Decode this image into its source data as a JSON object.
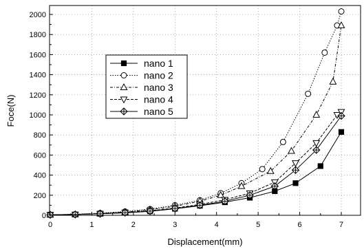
{
  "chart_data": {
    "type": "line",
    "xlabel": "Displacement(mm)",
    "ylabel": "Foce(N)",
    "xlim": [
      0,
      7.5
    ],
    "ylim": [
      0,
      2100
    ],
    "x_ticks": [
      0,
      1,
      2,
      3,
      4,
      5,
      6,
      7
    ],
    "y_ticks": [
      0,
      200,
      400,
      600,
      800,
      1000,
      1200,
      1400,
      1600,
      1800,
      2000
    ],
    "x_tick_labels": [
      "0",
      "1",
      "2",
      "3",
      "4",
      "5",
      "6",
      "7"
    ],
    "y_tick_labels": [
      "0",
      "200",
      "400",
      "600",
      "800",
      "1000",
      "1200",
      "1400",
      "1600",
      "1800",
      "2000"
    ],
    "grid": "dotted",
    "legend_position": "upper-left-center",
    "series": [
      {
        "name": "nano 1",
        "marker": "filled-square",
        "dash": "solid",
        "x": [
          0,
          0.6,
          1.2,
          1.8,
          2.4,
          3.0,
          3.6,
          4.2,
          4.8,
          5.4,
          5.9,
          6.5,
          7.0
        ],
        "y": [
          5,
          8,
          15,
          25,
          40,
          65,
          95,
          130,
          175,
          240,
          320,
          490,
          830
        ]
      },
      {
        "name": "nano 2",
        "marker": "open-circle",
        "dash": "dotted",
        "x": [
          0,
          0.6,
          1.2,
          1.8,
          2.4,
          3.0,
          3.6,
          4.1,
          4.6,
          5.1,
          5.6,
          6.2,
          6.6,
          6.9,
          7.0
        ],
        "y": [
          5,
          10,
          22,
          38,
          62,
          100,
          150,
          220,
          320,
          460,
          730,
          1210,
          1620,
          1890,
          2030
        ]
      },
      {
        "name": "nano 3",
        "marker": "open-triangle-up",
        "dash": "dash-dot",
        "x": [
          0,
          0.6,
          1.2,
          1.8,
          2.4,
          3.0,
          3.6,
          4.1,
          4.6,
          5.3,
          5.8,
          6.4,
          6.8,
          7.0
        ],
        "y": [
          5,
          9,
          18,
          32,
          55,
          90,
          140,
          200,
          290,
          440,
          640,
          1000,
          1330,
          1890
        ]
      },
      {
        "name": "nano 4",
        "marker": "open-triangle-down",
        "dash": "dashed",
        "x": [
          0,
          0.6,
          1.2,
          1.8,
          2.4,
          3.0,
          3.6,
          4.2,
          4.8,
          5.4,
          5.9,
          6.4,
          6.9,
          7.0
        ],
        "y": [
          5,
          8,
          16,
          28,
          45,
          72,
          108,
          155,
          220,
          330,
          520,
          720,
          1000,
          1030
        ]
      },
      {
        "name": "nano 5",
        "marker": "crossed-diamond",
        "dash": "solid",
        "x": [
          0,
          0.6,
          1.2,
          1.8,
          2.4,
          3.0,
          3.6,
          4.2,
          4.8,
          5.4,
          5.9,
          6.4,
          7.0
        ],
        "y": [
          5,
          8,
          15,
          26,
          42,
          68,
          100,
          140,
          200,
          290,
          450,
          650,
          990
        ]
      }
    ]
  }
}
